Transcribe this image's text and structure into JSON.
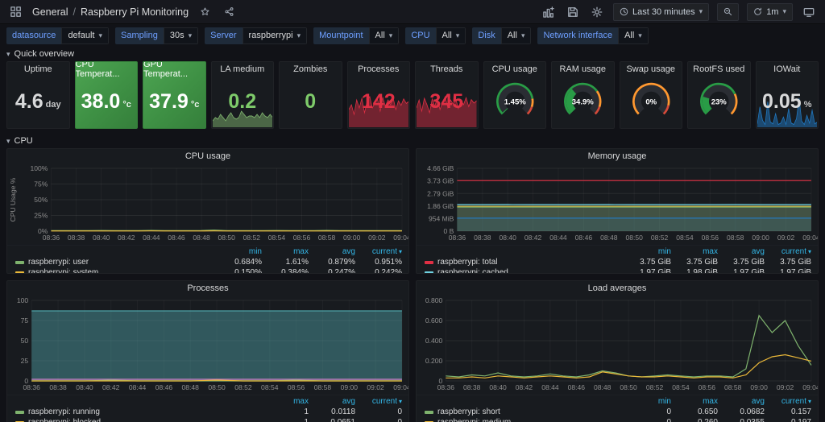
{
  "header": {
    "app_section": "General",
    "separator": "/",
    "dashboard_title": "Raspberry Pi Monitoring",
    "time_range": "Last 30 minutes",
    "refresh": "1m"
  },
  "variables": [
    {
      "label": "datasource",
      "value": "default"
    },
    {
      "label": "Sampling",
      "value": "30s"
    },
    {
      "label": "Server",
      "value": "raspberrypi"
    },
    {
      "label": "Mountpoint",
      "value": "All"
    },
    {
      "label": "CPU",
      "value": "All"
    },
    {
      "label": "Disk",
      "value": "All"
    },
    {
      "label": "Network interface",
      "value": "All"
    }
  ],
  "sections": [
    {
      "title": "Quick overview"
    },
    {
      "title": "CPU"
    }
  ],
  "stats": [
    {
      "type": "value",
      "title": "Uptime",
      "value": "4.6",
      "unit": "day",
      "value_color": "#d8d9da"
    },
    {
      "type": "value",
      "title": "CPU Temperat...",
      "value": "38.0",
      "unit": "°c",
      "value_color": "#ffffff",
      "bg": "green"
    },
    {
      "type": "value",
      "title": "GPU Temperat...",
      "value": "37.9",
      "unit": "°c",
      "value_color": "#ffffff",
      "bg": "green"
    },
    {
      "type": "value",
      "title": "LA medium",
      "value": "0.2",
      "value_color": "#7ecb6a",
      "spark": {
        "color": "#7EB26D",
        "h": 22,
        "fill_opacity": 0.5,
        "values": [
          0.2,
          0.3,
          0.25,
          0.4,
          0.3,
          0.2,
          0.35,
          0.45,
          0.3,
          0.25,
          0.3,
          0.5,
          0.4,
          0.3,
          0.35,
          0.35,
          0.3,
          0.4,
          0.3,
          0.45,
          0.35,
          0.3,
          0.4,
          0.3
        ]
      }
    },
    {
      "type": "value",
      "title": "Zombies",
      "value": "0",
      "value_color": "#7ecb6a"
    },
    {
      "type": "value",
      "title": "Processes",
      "value": "142",
      "value_color": "#e02f44",
      "spark": {
        "color": "#e02f44",
        "h": 40,
        "fill_opacity": 0.45,
        "values": [
          55,
          70,
          40,
          85,
          60,
          90,
          45,
          80,
          95,
          60,
          75,
          88,
          50,
          92,
          65,
          85,
          70,
          90,
          55,
          82,
          68,
          88,
          74,
          80
        ]
      }
    },
    {
      "type": "value",
      "title": "Threads",
      "value": "345",
      "value_color": "#e02f44",
      "spark": {
        "color": "#e02f44",
        "h": 40,
        "fill_opacity": 0.45,
        "values": [
          60,
          85,
          50,
          90,
          70,
          45,
          88,
          65,
          92,
          55,
          80,
          95,
          60,
          85,
          72,
          90,
          58,
          84,
          70,
          92,
          64,
          86,
          75,
          82
        ]
      }
    },
    {
      "type": "gauge",
      "title": "CPU usage",
      "value": "1.45%",
      "frac": 0.0145,
      "color": "#299c46",
      "ring": [
        [
          "#299c46",
          0.8
        ],
        [
          "#ff9830",
          0.1
        ],
        [
          "#d44a3a",
          0.1
        ]
      ]
    },
    {
      "type": "gauge",
      "title": "RAM usage",
      "value": "34.9%",
      "frac": 0.349,
      "color": "#299c46",
      "ring": [
        [
          "#299c46",
          0.7
        ],
        [
          "#ff9830",
          0.2
        ],
        [
          "#d44a3a",
          0.1
        ]
      ]
    },
    {
      "type": "gauge",
      "title": "Swap usage",
      "value": "0%",
      "frac": 0.003,
      "color": "#299c46",
      "ring": [
        [
          "#ff9830",
          0.88
        ],
        [
          "#d44a3a",
          0.12
        ]
      ]
    },
    {
      "type": "gauge",
      "title": "RootFS used",
      "value": "23%",
      "frac": 0.23,
      "color": "#299c46",
      "ring": [
        [
          "#299c46",
          0.74
        ],
        [
          "#ff9830",
          0.26
        ]
      ]
    },
    {
      "type": "value",
      "title": "IOWait",
      "value": "0.05",
      "unit": "%",
      "value_color": "#d8d9da",
      "spark": {
        "color": "#1f78c1",
        "h": 38,
        "fill_opacity": 0.5,
        "values": [
          10,
          60,
          20,
          8,
          75,
          15,
          10,
          40,
          8,
          12,
          30,
          8,
          55,
          12,
          8,
          25,
          85,
          18,
          8,
          35,
          12,
          50,
          10,
          15
        ]
      }
    }
  ],
  "chart_data": [
    {
      "type": "line",
      "title": "CPU usage",
      "ylabel": "CPU Usage %",
      "ylim": [
        0,
        100
      ],
      "yticks": [
        {
          "v": 100,
          "t": "100%"
        },
        {
          "v": 75,
          "t": "75%"
        },
        {
          "v": 50,
          "t": "50%"
        },
        {
          "v": 25,
          "t": "25%"
        },
        {
          "v": 0,
          "t": "0%"
        }
      ],
      "xticks": [
        "08:36",
        "08:38",
        "08:40",
        "08:42",
        "08:44",
        "08:46",
        "08:48",
        "08:50",
        "08:52",
        "08:54",
        "08:56",
        "08:58",
        "09:00",
        "09:02",
        "09:04"
      ],
      "series": [
        {
          "name": "raspberrypi: user",
          "color": "#7EB26D",
          "fill": true,
          "fill_opacity": 0.15,
          "values": [
            0.9,
            0.95,
            0.88,
            0.92,
            1.05,
            0.9,
            0.85,
            0.93,
            1.1,
            0.95,
            0.88,
            0.9,
            1.0,
            1.61,
            0.92,
            0.86,
            0.9,
            0.96,
            1.02,
            0.88,
            0.85,
            0.9,
            1.15,
            0.95,
            0.9,
            0.86,
            0.92,
            0.88,
            0.951
          ]
        },
        {
          "name": "raspberrypi: system",
          "color": "#EAB839",
          "fill": false,
          "values": [
            0.25,
            0.22,
            0.26,
            0.24,
            0.3,
            0.22,
            0.2,
            0.25,
            0.35,
            0.26,
            0.22,
            0.24,
            0.28,
            0.384,
            0.25,
            0.21,
            0.24,
            0.26,
            0.3,
            0.23,
            0.2,
            0.25,
            0.32,
            0.26,
            0.23,
            0.21,
            0.25,
            0.22,
            0.242
          ]
        }
      ],
      "legend": {
        "columns": [
          "min",
          "max",
          "avg",
          "current"
        ],
        "rows": [
          {
            "name": "raspberrypi: user",
            "color": "#7EB26D",
            "values": [
              "0.684%",
              "1.61%",
              "0.879%",
              "0.951%"
            ]
          },
          {
            "name": "raspberrypi: system",
            "color": "#EAB839",
            "values": [
              "0.150%",
              "0.384%",
              "0.247%",
              "0.242%"
            ]
          }
        ]
      }
    },
    {
      "type": "line",
      "title": "Memory usage",
      "ylabel": "",
      "ylim": [
        0,
        4.66
      ],
      "yticks": [
        {
          "v": 4.66,
          "t": "4.66 GiB"
        },
        {
          "v": 3.73,
          "t": "3.73 GiB"
        },
        {
          "v": 2.79,
          "t": "2.79 GiB"
        },
        {
          "v": 1.86,
          "t": "1.86 GiB"
        },
        {
          "v": 0.93,
          "t": "954 MiB"
        },
        {
          "v": 0,
          "t": "0 B"
        }
      ],
      "xticks": [
        "08:36",
        "08:38",
        "08:40",
        "08:42",
        "08:44",
        "08:46",
        "08:48",
        "08:50",
        "08:52",
        "08:54",
        "08:56",
        "08:58",
        "09:00",
        "09:02",
        "09:04"
      ],
      "series": [
        {
          "name": "raspberrypi: total",
          "color": "#e02f44",
          "fill": false,
          "values": [
            3.75,
            3.75,
            3.75,
            3.75,
            3.75,
            3.75,
            3.75,
            3.75,
            3.75,
            3.75,
            3.75,
            3.75,
            3.75,
            3.75,
            3.75
          ]
        },
        {
          "name": "raspberrypi: cached",
          "color": "#6ED0E0",
          "fill": true,
          "fill_opacity": 0.18,
          "values": [
            1.97,
            1.97,
            1.98,
            1.97,
            1.97,
            1.97,
            1.98,
            1.97,
            1.97,
            1.97,
            1.97,
            1.98,
            1.97,
            1.97,
            1.97
          ]
        },
        {
          "name": "",
          "color": "#EAB839",
          "fill": true,
          "fill_opacity": 0.1,
          "values": [
            1.84,
            1.84,
            1.84,
            1.84,
            1.84,
            1.84,
            1.84,
            1.84,
            1.84,
            1.84,
            1.84,
            1.84,
            1.84,
            1.84,
            1.84
          ]
        },
        {
          "name": "",
          "color": "#7EB26D",
          "fill": true,
          "fill_opacity": 0.1,
          "values": [
            1.78,
            1.78,
            1.78,
            1.78,
            1.78,
            1.78,
            1.78,
            1.78,
            1.78,
            1.78,
            1.78,
            1.78,
            1.78,
            1.78,
            1.78
          ]
        },
        {
          "name": "",
          "color": "#1F78C1",
          "fill": true,
          "fill_opacity": 0.12,
          "values": [
            0.97,
            0.97,
            0.97,
            0.97,
            0.97,
            0.97,
            0.97,
            0.97,
            0.97,
            0.97,
            0.97,
            0.97,
            0.97,
            0.97,
            0.97
          ]
        }
      ],
      "legend": {
        "columns": [
          "min",
          "max",
          "avg",
          "current"
        ],
        "rows": [
          {
            "name": "raspberrypi: total",
            "color": "#e02f44",
            "values": [
              "3.75 GiB",
              "3.75 GiB",
              "3.75 GiB",
              "3.75 GiB"
            ]
          },
          {
            "name": "raspberrypi: cached",
            "color": "#6ED0E0",
            "values": [
              "1.97 GiB",
              "1.98 GiB",
              "1.97 GiB",
              "1.97 GiB"
            ]
          }
        ]
      }
    },
    {
      "type": "line",
      "title": "Processes",
      "ylabel": "",
      "ylim": [
        0,
        100
      ],
      "yticks": [
        {
          "v": 100,
          "t": "100"
        },
        {
          "v": 75,
          "t": "75"
        },
        {
          "v": 50,
          "t": "50"
        },
        {
          "v": 25,
          "t": "25"
        },
        {
          "v": 0,
          "t": "0"
        }
      ],
      "xticks": [
        "08:36",
        "08:38",
        "08:40",
        "08:42",
        "08:44",
        "08:46",
        "08:48",
        "08:50",
        "08:52",
        "08:54",
        "08:56",
        "08:58",
        "09:00",
        "09:02",
        "09:04"
      ],
      "series": [
        {
          "name": "",
          "color": "#4FA3A8",
          "fill": true,
          "fill_opacity": 0.45,
          "values": [
            87,
            87,
            87,
            87,
            87,
            87,
            87,
            87,
            87,
            87,
            87,
            87,
            87,
            87,
            87
          ]
        },
        {
          "name": "",
          "color": "#D683CE",
          "fill": false,
          "values": [
            2,
            2,
            2,
            2,
            2,
            2,
            2,
            2,
            2,
            2,
            2,
            2,
            2,
            2,
            2
          ]
        },
        {
          "name": "raspberrypi: running",
          "color": "#7EB26D",
          "fill": false,
          "values": [
            0,
            0,
            0,
            1,
            0,
            0,
            0,
            0,
            0,
            0,
            1,
            0,
            0,
            0,
            0
          ]
        },
        {
          "name": "raspberrypi: blocked",
          "color": "#EAB839",
          "fill": false,
          "values": [
            0,
            0,
            0,
            0,
            0,
            0,
            0,
            1,
            0,
            0,
            0,
            0,
            0,
            0,
            0
          ]
        }
      ],
      "legend": {
        "columns": [
          "max",
          "avg",
          "current"
        ],
        "rows": [
          {
            "name": "raspberrypi: running",
            "color": "#7EB26D",
            "values": [
              "1",
              "0.0118",
              "0"
            ]
          },
          {
            "name": "raspberrypi: blocked",
            "color": "#EAB839",
            "values": [
              "1",
              "0.0651",
              "0"
            ]
          }
        ]
      }
    },
    {
      "type": "line",
      "title": "Load averages",
      "ylabel": "",
      "ylim": [
        0,
        0.8
      ],
      "yticks": [
        {
          "v": 0.8,
          "t": "0.800"
        },
        {
          "v": 0.6,
          "t": "0.600"
        },
        {
          "v": 0.4,
          "t": "0.400"
        },
        {
          "v": 0.2,
          "t": "0.200"
        },
        {
          "v": 0,
          "t": "0"
        }
      ],
      "xticks": [
        "08:36",
        "08:38",
        "08:40",
        "08:42",
        "08:44",
        "08:46",
        "08:48",
        "08:50",
        "08:52",
        "08:54",
        "08:56",
        "08:58",
        "09:00",
        "09:02",
        "09:04"
      ],
      "series": [
        {
          "name": "raspberrypi: short",
          "color": "#7EB26D",
          "fill": false,
          "values": [
            0.05,
            0.04,
            0.06,
            0.05,
            0.08,
            0.05,
            0.04,
            0.05,
            0.07,
            0.05,
            0.04,
            0.06,
            0.1,
            0.08,
            0.05,
            0.04,
            0.05,
            0.06,
            0.05,
            0.04,
            0.05,
            0.05,
            0.04,
            0.12,
            0.65,
            0.48,
            0.6,
            0.35,
            0.157
          ]
        },
        {
          "name": "raspberrypi: medium",
          "color": "#EAB839",
          "fill": false,
          "values": [
            0.03,
            0.03,
            0.04,
            0.03,
            0.05,
            0.04,
            0.03,
            0.04,
            0.05,
            0.04,
            0.03,
            0.04,
            0.09,
            0.07,
            0.05,
            0.04,
            0.04,
            0.05,
            0.04,
            0.03,
            0.04,
            0.04,
            0.03,
            0.06,
            0.18,
            0.24,
            0.26,
            0.23,
            0.197
          ]
        }
      ],
      "legend": {
        "columns": [
          "min",
          "max",
          "avg",
          "current"
        ],
        "rows": [
          {
            "name": "raspberrypi: short",
            "color": "#7EB26D",
            "values": [
              "0",
              "0.650",
              "0.0682",
              "0.157"
            ]
          },
          {
            "name": "raspberrypi: medium",
            "color": "#EAB839",
            "values": [
              "0",
              "0.260",
              "0.0355",
              "0.197"
            ]
          }
        ]
      }
    }
  ]
}
